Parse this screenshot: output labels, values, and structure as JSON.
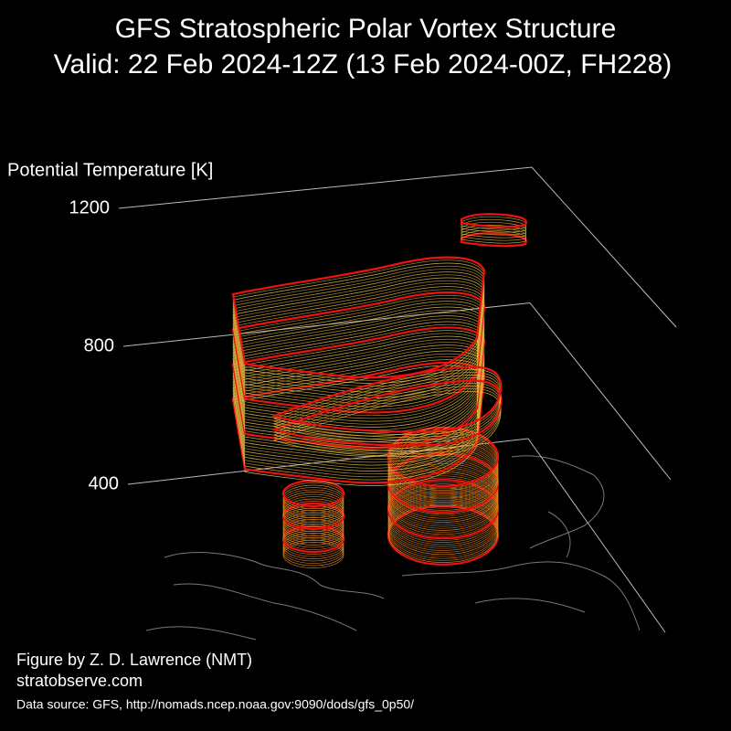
{
  "chart_data": {
    "type": "3d-contour",
    "title": "GFS Stratospheric Polar Vortex Structure",
    "subtitle": "Valid: 22 Feb 2024-12Z  (13 Feb 2024-00Z, FH228)",
    "zlabel": "Potential Temperature [K]",
    "zlim": [
      400,
      1200
    ],
    "zticks": [
      400,
      800,
      1200
    ],
    "credit": "Figure by Z. D. Lawrence (NMT)",
    "website": "stratobserve.com",
    "source": "Data source: GFS, http://nomads.ncep.noaa.gov:9090/dods/gfs_0p50/"
  }
}
